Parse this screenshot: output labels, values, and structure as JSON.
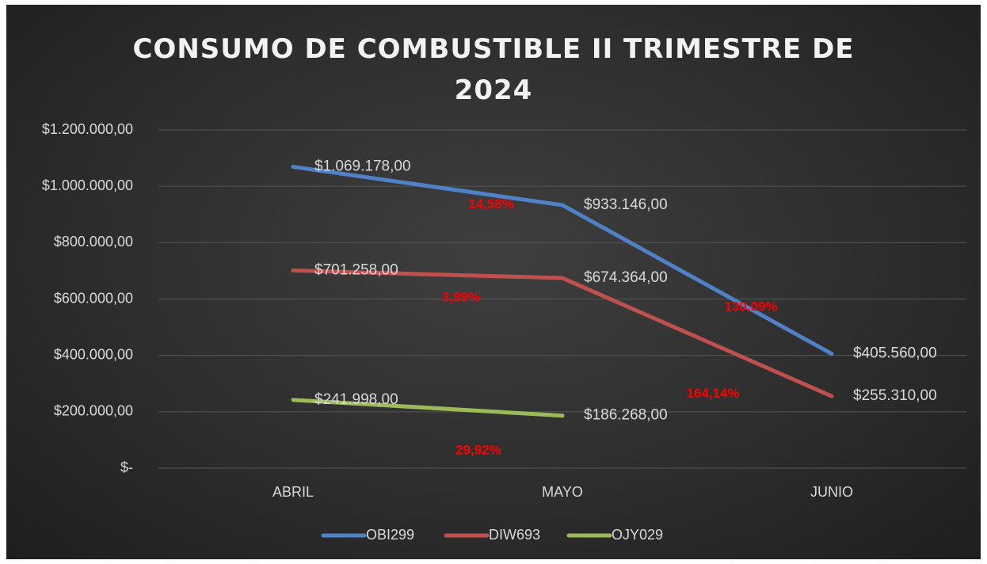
{
  "chart_data": {
    "type": "line",
    "title": "CONSUMO DE COMBUSTIBLE II TRIMESTRE DE 2024",
    "categories": [
      "ABRIL",
      "MAYO",
      "JUNIO"
    ],
    "ylim": [
      0,
      1200000
    ],
    "yticks": [
      {
        "value": 0,
        "label": "$-"
      },
      {
        "value": 200000,
        "label": "$200.000,00"
      },
      {
        "value": 400000,
        "label": "$400.000,00"
      },
      {
        "value": 600000,
        "label": "$600.000,00"
      },
      {
        "value": 800000,
        "label": "$800.000,00"
      },
      {
        "value": 1000000,
        "label": "$1.000.000,00"
      },
      {
        "value": 1200000,
        "label": "$1.200.000,00"
      }
    ],
    "grid": true,
    "legend": "bottom",
    "series": [
      {
        "name": "OBI299",
        "color": "#4f81c7",
        "values": [
          1069178,
          933146,
          405560
        ],
        "value_labels": [
          "$1.069.178,00",
          "$933.146,00",
          "$405.560,00"
        ],
        "change_labels": [
          "14,58%",
          "130,09%"
        ]
      },
      {
        "name": "DIW693",
        "color": "#c0504d",
        "values": [
          701258,
          674364,
          255310
        ],
        "value_labels": [
          "$701.258,00",
          "$674.364,00",
          "$255.310,00"
        ],
        "change_labels": [
          "3,99%",
          "164,14%"
        ]
      },
      {
        "name": "OJY029",
        "color": "#9bbb59",
        "values": [
          241998,
          186268,
          null
        ],
        "value_labels": [
          "$241.998,00",
          "$186.268,00",
          null
        ],
        "change_labels": [
          "29,92%"
        ]
      }
    ]
  }
}
